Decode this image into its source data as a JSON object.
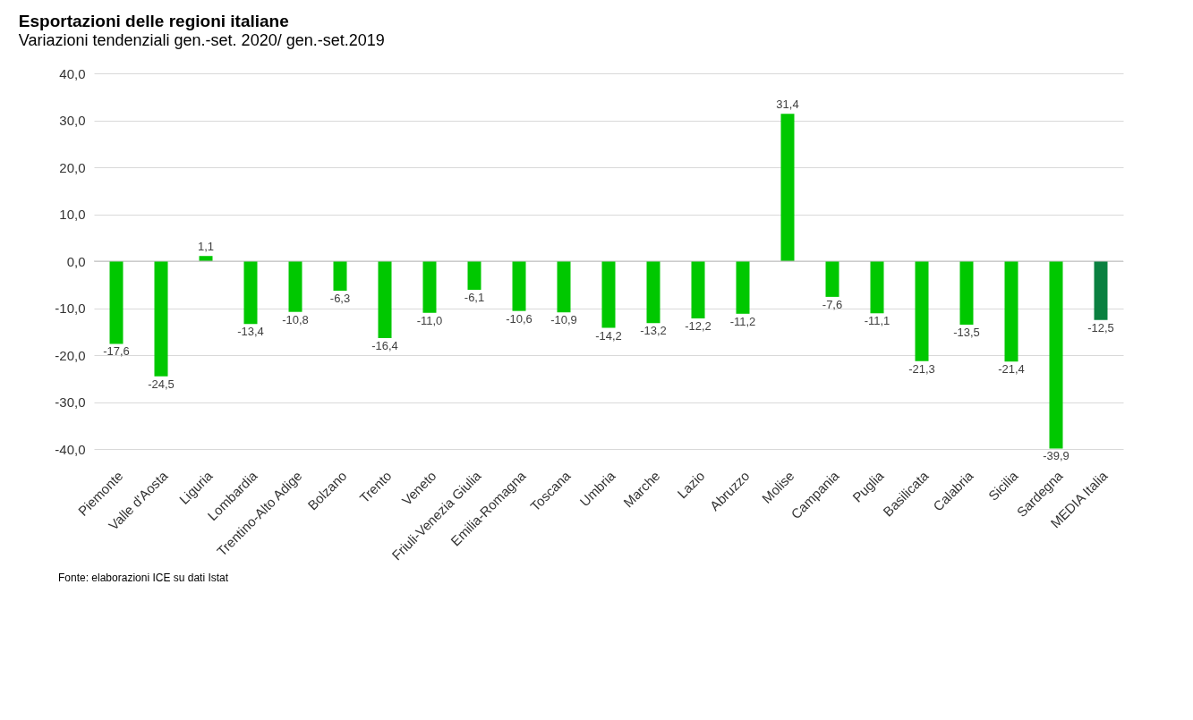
{
  "chart_data": {
    "type": "bar",
    "title": "Esportazioni delle regioni italiane",
    "subtitle": "Variazioni tendenziali gen.-set. 2020/ gen.-set.2019",
    "categories": [
      "Piemonte",
      "Valle d'Aosta",
      "Liguria",
      "Lombardia",
      "Trentino-Alto Adige",
      "Bolzano",
      "Trento",
      "Veneto",
      "Friuli-Venezia Giulia",
      "Emilia-Romagna",
      "Toscana",
      "Umbria",
      "Marche",
      "Lazio",
      "Abruzzo",
      "Molise",
      "Campania",
      "Puglia",
      "Basilicata",
      "Calabria",
      "Sicilia",
      "Sardegna",
      "MEDIA Italia"
    ],
    "values": [
      -17.6,
      -24.5,
      1.1,
      -13.4,
      -10.8,
      -6.3,
      -16.4,
      -11.0,
      -6.1,
      -10.6,
      -10.9,
      -14.2,
      -13.2,
      -12.2,
      -11.2,
      31.4,
      -7.6,
      -11.1,
      -21.3,
      -13.5,
      -21.4,
      -39.9,
      -12.5
    ],
    "value_labels": [
      "-17,6",
      "-24,5",
      "1,1",
      "-13,4",
      "-10,8",
      "-6,3",
      "-16,4",
      "-11,0",
      "-6,1",
      "-10,6",
      "-10,9",
      "-14,2",
      "-13,2",
      "-12,2",
      "-11,2",
      "31,4",
      "-7,6",
      "-11,1",
      "-21,3",
      "-13,5",
      "-21,4",
      "-39,9",
      "-12,5"
    ],
    "colors": [
      "#00c800",
      "#00c800",
      "#00c800",
      "#00c800",
      "#00c800",
      "#00c800",
      "#00c800",
      "#00c800",
      "#00c800",
      "#00c800",
      "#00c800",
      "#00c800",
      "#00c800",
      "#00c800",
      "#00c800",
      "#00c800",
      "#00c800",
      "#00c800",
      "#00c800",
      "#00c800",
      "#00c800",
      "#00c800",
      "#0a8040"
    ],
    "ylim": [
      -40,
      40
    ],
    "yticks": [
      {
        "value": -40,
        "label": "-40,0"
      },
      {
        "value": -30,
        "label": "-30,0"
      },
      {
        "value": -20,
        "label": "-20,0"
      },
      {
        "value": -10,
        "label": "-10,0"
      },
      {
        "value": 0,
        "label": "0,0"
      },
      {
        "value": 10,
        "label": "10,0"
      },
      {
        "value": 20,
        "label": "20,0"
      },
      {
        "value": 30,
        "label": "30,0"
      },
      {
        "value": 40,
        "label": "40,0"
      }
    ],
    "grid": "y",
    "annotations": [
      "Fonte: elaborazioni ICE su dati Istat"
    ]
  }
}
